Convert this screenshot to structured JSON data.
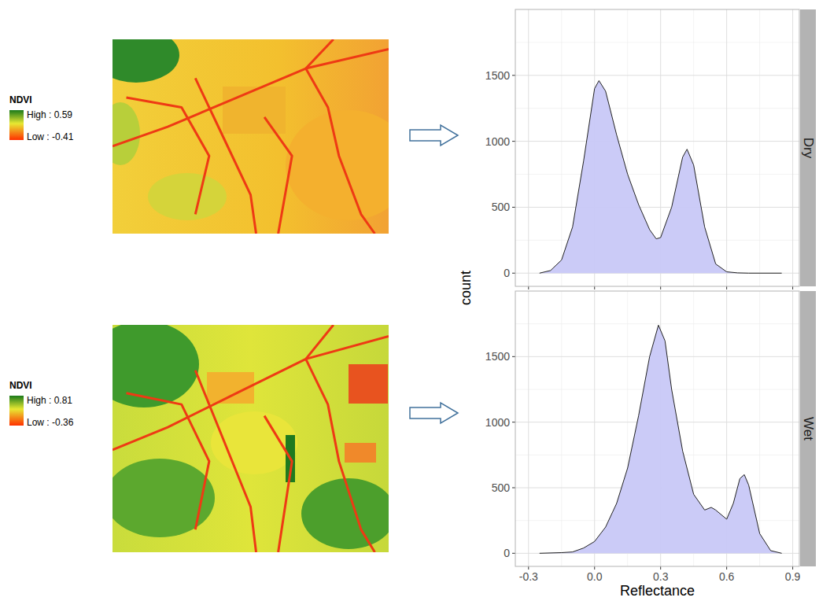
{
  "chart_data": [
    {
      "type": "area",
      "title": "Dry",
      "x": [
        -0.25,
        -0.2,
        -0.15,
        -0.1,
        -0.05,
        0.0,
        0.02,
        0.05,
        0.1,
        0.15,
        0.2,
        0.25,
        0.28,
        0.3,
        0.35,
        0.4,
        0.42,
        0.45,
        0.5,
        0.55,
        0.6,
        0.65,
        0.7,
        0.85
      ],
      "values": [
        0,
        20,
        100,
        350,
        850,
        1400,
        1460,
        1380,
        1050,
        750,
        520,
        330,
        260,
        270,
        500,
        880,
        940,
        820,
        350,
        70,
        10,
        2,
        0,
        0
      ],
      "xlim": [
        -0.36,
        0.93
      ],
      "ylim": [
        -100,
        2000
      ],
      "xticks": [
        -0.3,
        {
          "value": 0,
          "label": "0.0"
        },
        0.3,
        0.6,
        0.9
      ],
      "yticks": [
        0,
        500,
        1000,
        1500
      ],
      "grid": true,
      "color": "#c8c8f7",
      "tick_labels": "y"
    },
    {
      "type": "area",
      "title": "Wet",
      "x": [
        -0.25,
        -0.15,
        -0.1,
        -0.05,
        0.0,
        0.05,
        0.1,
        0.15,
        0.2,
        0.25,
        0.29,
        0.32,
        0.35,
        0.4,
        0.45,
        0.5,
        0.53,
        0.55,
        0.6,
        0.63,
        0.66,
        0.68,
        0.7,
        0.75,
        0.8,
        0.85
      ],
      "values": [
        0,
        5,
        10,
        40,
        90,
        200,
        380,
        650,
        1050,
        1500,
        1740,
        1620,
        1250,
        780,
        450,
        330,
        350,
        330,
        260,
        380,
        570,
        600,
        520,
        150,
        20,
        0
      ],
      "xlim": [
        -0.36,
        0.93
      ],
      "ylim": [
        -100,
        2000
      ],
      "xticks": [
        -0.3,
        {
          "value": 0,
          "label": "0.0"
        },
        0.3,
        0.6,
        0.9
      ],
      "yticks": [
        0,
        500,
        1000,
        1500
      ],
      "grid": true,
      "color": "#c8c8f7",
      "x_label": "Reflectance",
      "y_label": "count"
    }
  ],
  "maps": [
    {
      "legend_title": "NDVI",
      "high_label": "High : 0.59",
      "low_label": "Low : -0.41"
    },
    {
      "legend_title": "NDVI",
      "high_label": "High : 0.81",
      "low_label": "Low : -0.36"
    }
  ]
}
